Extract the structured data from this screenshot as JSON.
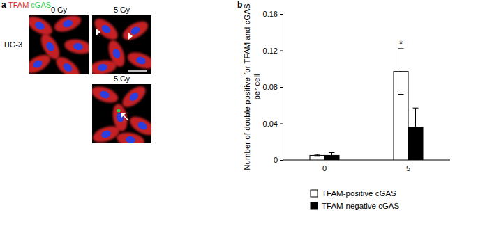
{
  "panel_a": {
    "label": "a",
    "stains": [
      {
        "text": "TFAM",
        "color": "#e8262a"
      },
      {
        "text": "cGAS",
        "color": "#2bd14a"
      }
    ],
    "row_label": "TIG-3",
    "images": [
      "0 Gy",
      "5 Gy",
      "5 Gy"
    ]
  },
  "panel_b": {
    "label": "b"
  },
  "chart_data": {
    "type": "bar",
    "ylabel": "Number of double positive for TFAM and cGAS per cell",
    "categories": [
      "0",
      "5"
    ],
    "ylim": [
      0,
      0.16
    ],
    "yticks": [
      0,
      0.04,
      0.08,
      0.12,
      0.16
    ],
    "grid": false,
    "legend": "bottom",
    "series": [
      {
        "name": "TFAM-positive cGAS",
        "color": "#ffffff",
        "values": [
          0.005,
          0.097
        ],
        "errors": [
          0.001,
          0.025
        ]
      },
      {
        "name": "TFAM-negative cGAS",
        "color": "#000000",
        "values": [
          0.005,
          0.036
        ],
        "errors": [
          0.003,
          0.021
        ]
      }
    ],
    "annotations": [
      {
        "text": "*",
        "category": 1,
        "series": 0
      }
    ]
  }
}
